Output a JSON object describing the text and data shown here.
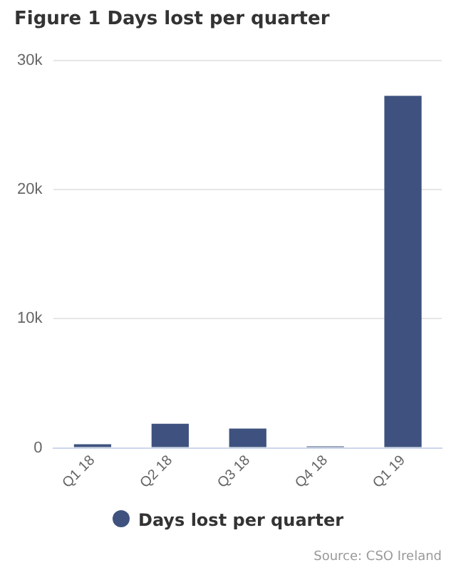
{
  "chart_data": {
    "type": "bar",
    "title": "Figure 1 Days lost per quarter",
    "categories": [
      "Q1 18",
      "Q2 18",
      "Q3 18",
      "Q4 18",
      "Q1 19"
    ],
    "series": [
      {
        "name": "Days lost per quarter",
        "color": "#3f527f",
        "values": [
          270,
          1870,
          1490,
          115,
          27280
        ]
      }
    ],
    "ylim": [
      0,
      30000
    ],
    "yticks": [
      {
        "value": 0,
        "label": "0"
      },
      {
        "value": 10000,
        "label": "10k"
      },
      {
        "value": 20000,
        "label": "20k"
      },
      {
        "value": 30000,
        "label": "30k"
      }
    ],
    "grid": "y",
    "legend": "bottom",
    "annotations": [
      "Source: CSO Ireland"
    ]
  }
}
